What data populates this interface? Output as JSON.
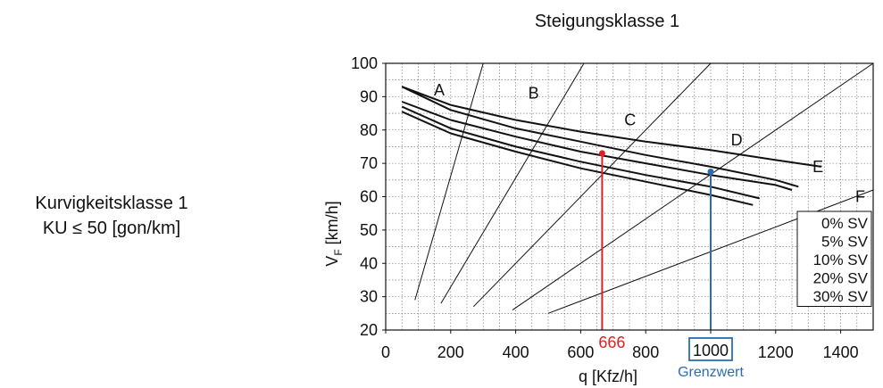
{
  "side_label": {
    "line1": "Kurvigkeitsklasse 1",
    "line2": "KU ≤ 50 [gon/km]"
  },
  "colors": {
    "ink": "#111111",
    "red": "#e02020",
    "blue": "#2a6db5",
    "grid": "#666666"
  },
  "chart_data": {
    "type": "line",
    "title": "Steigungsklasse 1",
    "xlabel": "q [Kfz/h]",
    "ylabel_main": "V",
    "ylabel_sub": "F",
    "ylabel_unit": " [km/h]",
    "xlim": [
      0,
      1500
    ],
    "ylim": [
      20,
      100
    ],
    "xticks": [
      0,
      200,
      400,
      600,
      800,
      1000,
      1200,
      1400
    ],
    "yticks": [
      20,
      30,
      40,
      50,
      60,
      70,
      80,
      90,
      100
    ],
    "grid": true,
    "legend_position": "bottom-right",
    "series": [
      {
        "name": "0% SV",
        "x": [
          50,
          200,
          400,
          600,
          800,
          1000,
          1200,
          1340
        ],
        "y": [
          93,
          87.5,
          83,
          79.5,
          76.5,
          74,
          71,
          69
        ]
      },
      {
        "name": "5% SV",
        "x": [
          50,
          200,
          400,
          600,
          800,
          1000,
          1200,
          1270
        ],
        "y": [
          93,
          86,
          80.5,
          76.5,
          72.5,
          69,
          65,
          63
        ]
      },
      {
        "name": "10% SV",
        "x": [
          50,
          200,
          400,
          600,
          800,
          1000,
          1200,
          1250
        ],
        "y": [
          88.5,
          83,
          78,
          73.5,
          70,
          66.5,
          63.5,
          62
        ]
      },
      {
        "name": "20% SV",
        "x": [
          50,
          200,
          400,
          600,
          800,
          1000,
          1150
        ],
        "y": [
          87,
          80.5,
          75,
          70.5,
          66.5,
          63,
          59.5
        ]
      },
      {
        "name": "30% SV",
        "x": [
          50,
          200,
          400,
          600,
          800,
          1000,
          1130
        ],
        "y": [
          85.5,
          79,
          73.5,
          68.5,
          64.5,
          60.5,
          57.5
        ]
      }
    ],
    "los_lines": [
      {
        "label": "A",
        "x": [
          90,
          300
        ],
        "y": [
          29,
          100
        ]
      },
      {
        "label": "B",
        "x": [
          170,
          610
        ],
        "y": [
          28,
          100
        ]
      },
      {
        "label": "C",
        "x": [
          270,
          1000
        ],
        "y": [
          27,
          100
        ]
      },
      {
        "label": "D",
        "x": [
          390,
          1500
        ],
        "y": [
          26,
          100
        ]
      },
      {
        "label": "E",
        "x": [
          500,
          1500
        ],
        "y": [
          25,
          62
        ]
      }
    ],
    "los_labels": [
      {
        "label": "A",
        "x": 165,
        "y": 92
      },
      {
        "label": "B",
        "x": 455,
        "y": 91
      },
      {
        "label": "C",
        "x": 752,
        "y": 83
      },
      {
        "label": "D",
        "x": 1080,
        "y": 77
      },
      {
        "label": "E",
        "x": 1330,
        "y": 69
      },
      {
        "label": "F",
        "x": 1460,
        "y": 60
      }
    ],
    "markers": [
      {
        "name": "red",
        "x": 666,
        "y": 73,
        "label": "666"
      },
      {
        "name": "blue",
        "x": 1000,
        "y": 67.5,
        "label": "1000",
        "sublabel": "Grenzwert"
      }
    ]
  }
}
